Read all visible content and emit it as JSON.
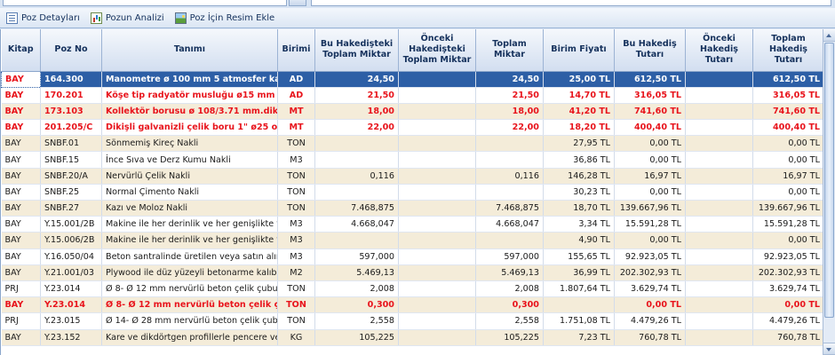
{
  "toolbar": {
    "buttons": [
      {
        "label": "Poz Detayları",
        "icon": "detail-list-icon"
      },
      {
        "label": "Pozun Analizi",
        "icon": "analysis-chart-icon"
      },
      {
        "label": "Poz İçin Resim Ekle",
        "icon": "image-icon"
      }
    ]
  },
  "grid": {
    "columns": [
      "Kitap",
      "Poz No",
      "Tanımı",
      "Birimi",
      "Bu Hakedişteki Toplam Miktar",
      "Önceki Hakedişteki Toplam Miktar",
      "Toplam Miktar",
      "Birim Fiyatı",
      "Bu Hakediş Tutarı",
      "Önceki Hakediş Tutarı",
      "Toplam Hakediş Tutarı"
    ],
    "rows": [
      {
        "style": "selected",
        "cells": [
          "BAY",
          "164.300",
          "Manometre ø 100 mm 5 atmosfer kad",
          "AD",
          "24,50",
          "",
          "24,50",
          "25,00 TL",
          "612,50 TL",
          "",
          "612,50 TL"
        ]
      },
      {
        "style": "highlight",
        "cells": [
          "BAY",
          "170.201",
          "Köşe tip radyatör musluğu  ø15 mm (1",
          "AD",
          "21,50",
          "",
          "21,50",
          "14,70 TL",
          "316,05 TL",
          "",
          "316,05 TL"
        ]
      },
      {
        "style": "highlight",
        "cells": [
          "BAY",
          "173.103",
          "Kollektör borusu ø 108/3.71 mm.dikiş",
          "MT",
          "18,00",
          "",
          "18,00",
          "41,20 TL",
          "741,60 TL",
          "",
          "741,60 TL"
        ]
      },
      {
        "style": "highlight",
        "cells": [
          "BAY",
          "201.205/C",
          "Dikişli galvanizli çelik boru 1\"  ø25 orta",
          "MT",
          "22,00",
          "",
          "22,00",
          "18,20 TL",
          "400,40 TL",
          "",
          "400,40 TL"
        ]
      },
      {
        "style": "normal",
        "cells": [
          "BAY",
          "SNBF.01",
          "Sönmemiş Kireç Nakli",
          "TON",
          "",
          "",
          "",
          "27,95 TL",
          "0,00 TL",
          "",
          "0,00 TL"
        ]
      },
      {
        "style": "normal",
        "cells": [
          "BAY",
          "SNBF.15",
          "İnce Sıva ve Derz Kumu  Nakli",
          "M3",
          "",
          "",
          "",
          "36,86 TL",
          "0,00 TL",
          "",
          "0,00 TL"
        ]
      },
      {
        "style": "normal",
        "cells": [
          "BAY",
          "SNBF.20/A",
          "Nervürlü Çelik Nakli",
          "TON",
          "0,116",
          "",
          "0,116",
          "146,28 TL",
          "16,97 TL",
          "",
          "16,97 TL"
        ]
      },
      {
        "style": "normal",
        "cells": [
          "BAY",
          "SNBF.25",
          "Normal Çimento Nakli",
          "TON",
          "",
          "",
          "",
          "30,23 TL",
          "0,00 TL",
          "",
          "0,00 TL"
        ]
      },
      {
        "style": "normal",
        "cells": [
          "BAY",
          "SNBF.27",
          "Kazı ve Moloz Nakli",
          "TON",
          "7.468,875",
          "",
          "7.468,875",
          "18,70 TL",
          "139.667,96 TL",
          "",
          "139.667,96 TL"
        ]
      },
      {
        "style": "normal",
        "cells": [
          "BAY",
          "Y.15.001/2B",
          "Makine ile her derinlik ve her genişlikte y",
          "M3",
          "4.668,047",
          "",
          "4.668,047",
          "3,34 TL",
          "15.591,28 TL",
          "",
          "15.591,28 TL"
        ]
      },
      {
        "style": "normal",
        "cells": [
          "BAY",
          "Y.15.006/2B",
          "Makine ile her derinlik ve her genişlikte y",
          "M3",
          "",
          "",
          "",
          "4,90 TL",
          "0,00 TL",
          "",
          "0,00 TL"
        ]
      },
      {
        "style": "normal",
        "cells": [
          "BAY",
          "Y.16.050/04",
          "Beton santralinde üretilen veya satın alın",
          "M3",
          "597,000",
          "",
          "597,000",
          "155,65 TL",
          "92.923,05 TL",
          "",
          "92.923,05 TL"
        ]
      },
      {
        "style": "normal",
        "cells": [
          "BAY",
          "Y.21.001/03",
          "Plywood ile düz yüzeyli betonarme kalıbı",
          "M2",
          "5.469,13",
          "",
          "5.469,13",
          "36,99 TL",
          "202.302,93 TL",
          "",
          "202.302,93 TL"
        ]
      },
      {
        "style": "normal",
        "cells": [
          "PRJ",
          "Y.23.014",
          "Ø 8- Ø 12 mm nervürlü beton çelik çubu",
          "TON",
          "2,008",
          "",
          "2,008",
          "1.807,64 TL",
          "3.629,74 TL",
          "",
          "3.629,74 TL"
        ]
      },
      {
        "style": "highlight",
        "cells": [
          "BAY",
          "Y.23.014",
          "Ø 8- Ø 12 mm nervürlü beton çelik çub",
          "TON",
          "0,300",
          "",
          "0,300",
          "",
          "0,00 TL",
          "",
          "0,00 TL"
        ]
      },
      {
        "style": "normal",
        "cells": [
          "PRJ",
          "Y.23.015",
          "Ø 14- Ø 28 mm nervürlü beton çelik çub",
          "TON",
          "2,558",
          "",
          "2,558",
          "1.751,08 TL",
          "4.479,26 TL",
          "",
          "4.479,26 TL"
        ]
      },
      {
        "style": "normal",
        "cells": [
          "BAY",
          "Y.23.152",
          "Kare ve dikdörtgen profillerle pencere ve",
          "KG",
          "105,225",
          "",
          "105,225",
          "7,23 TL",
          "760,78 TL",
          "",
          "760,78 TL"
        ]
      }
    ]
  },
  "colors": {
    "highlight_text": "#e8141c",
    "selection": "#2d5fa6",
    "row_alt": "#f4ecd9"
  }
}
